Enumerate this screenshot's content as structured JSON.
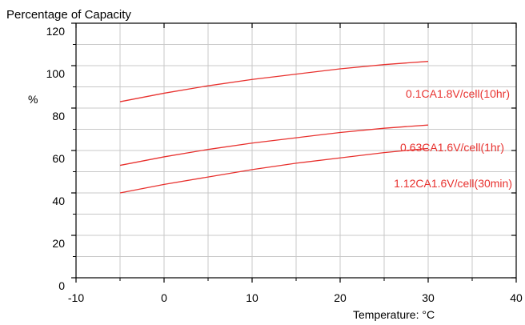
{
  "chart_data": {
    "type": "line",
    "title": "Percentage of Capacity",
    "xlabel": "Temperature: °C",
    "ylabel": "%",
    "xlim": [
      -10,
      40
    ],
    "ylim": [
      0,
      120
    ],
    "x_ticks": [
      "-10",
      "0",
      "10",
      "20",
      "30",
      "40"
    ],
    "y_ticks": [
      "0",
      "20",
      "40",
      "60",
      "80",
      "100",
      "120"
    ],
    "grid": true,
    "series_color": "#e8322f",
    "series": [
      {
        "name": "0.1CA1.8V/cell(10hr)",
        "x": [
          -5,
          0,
          5,
          10,
          15,
          20,
          25,
          30
        ],
        "y": [
          83,
          87,
          90.5,
          93.5,
          96,
          98.5,
          100.5,
          102
        ]
      },
      {
        "name": "0.63CA1.6V/cell(1hr)",
        "x": [
          -5,
          0,
          5,
          10,
          15,
          20,
          25,
          30
        ],
        "y": [
          53,
          57,
          60.5,
          63.5,
          66,
          68.5,
          70.5,
          72
        ]
      },
      {
        "name": "1.12CA1.6V/cell(30min)",
        "x": [
          -5,
          0,
          5,
          10,
          15,
          20,
          25,
          30
        ],
        "y": [
          40,
          44,
          47.5,
          51,
          54,
          56.5,
          59,
          61
        ]
      }
    ]
  }
}
